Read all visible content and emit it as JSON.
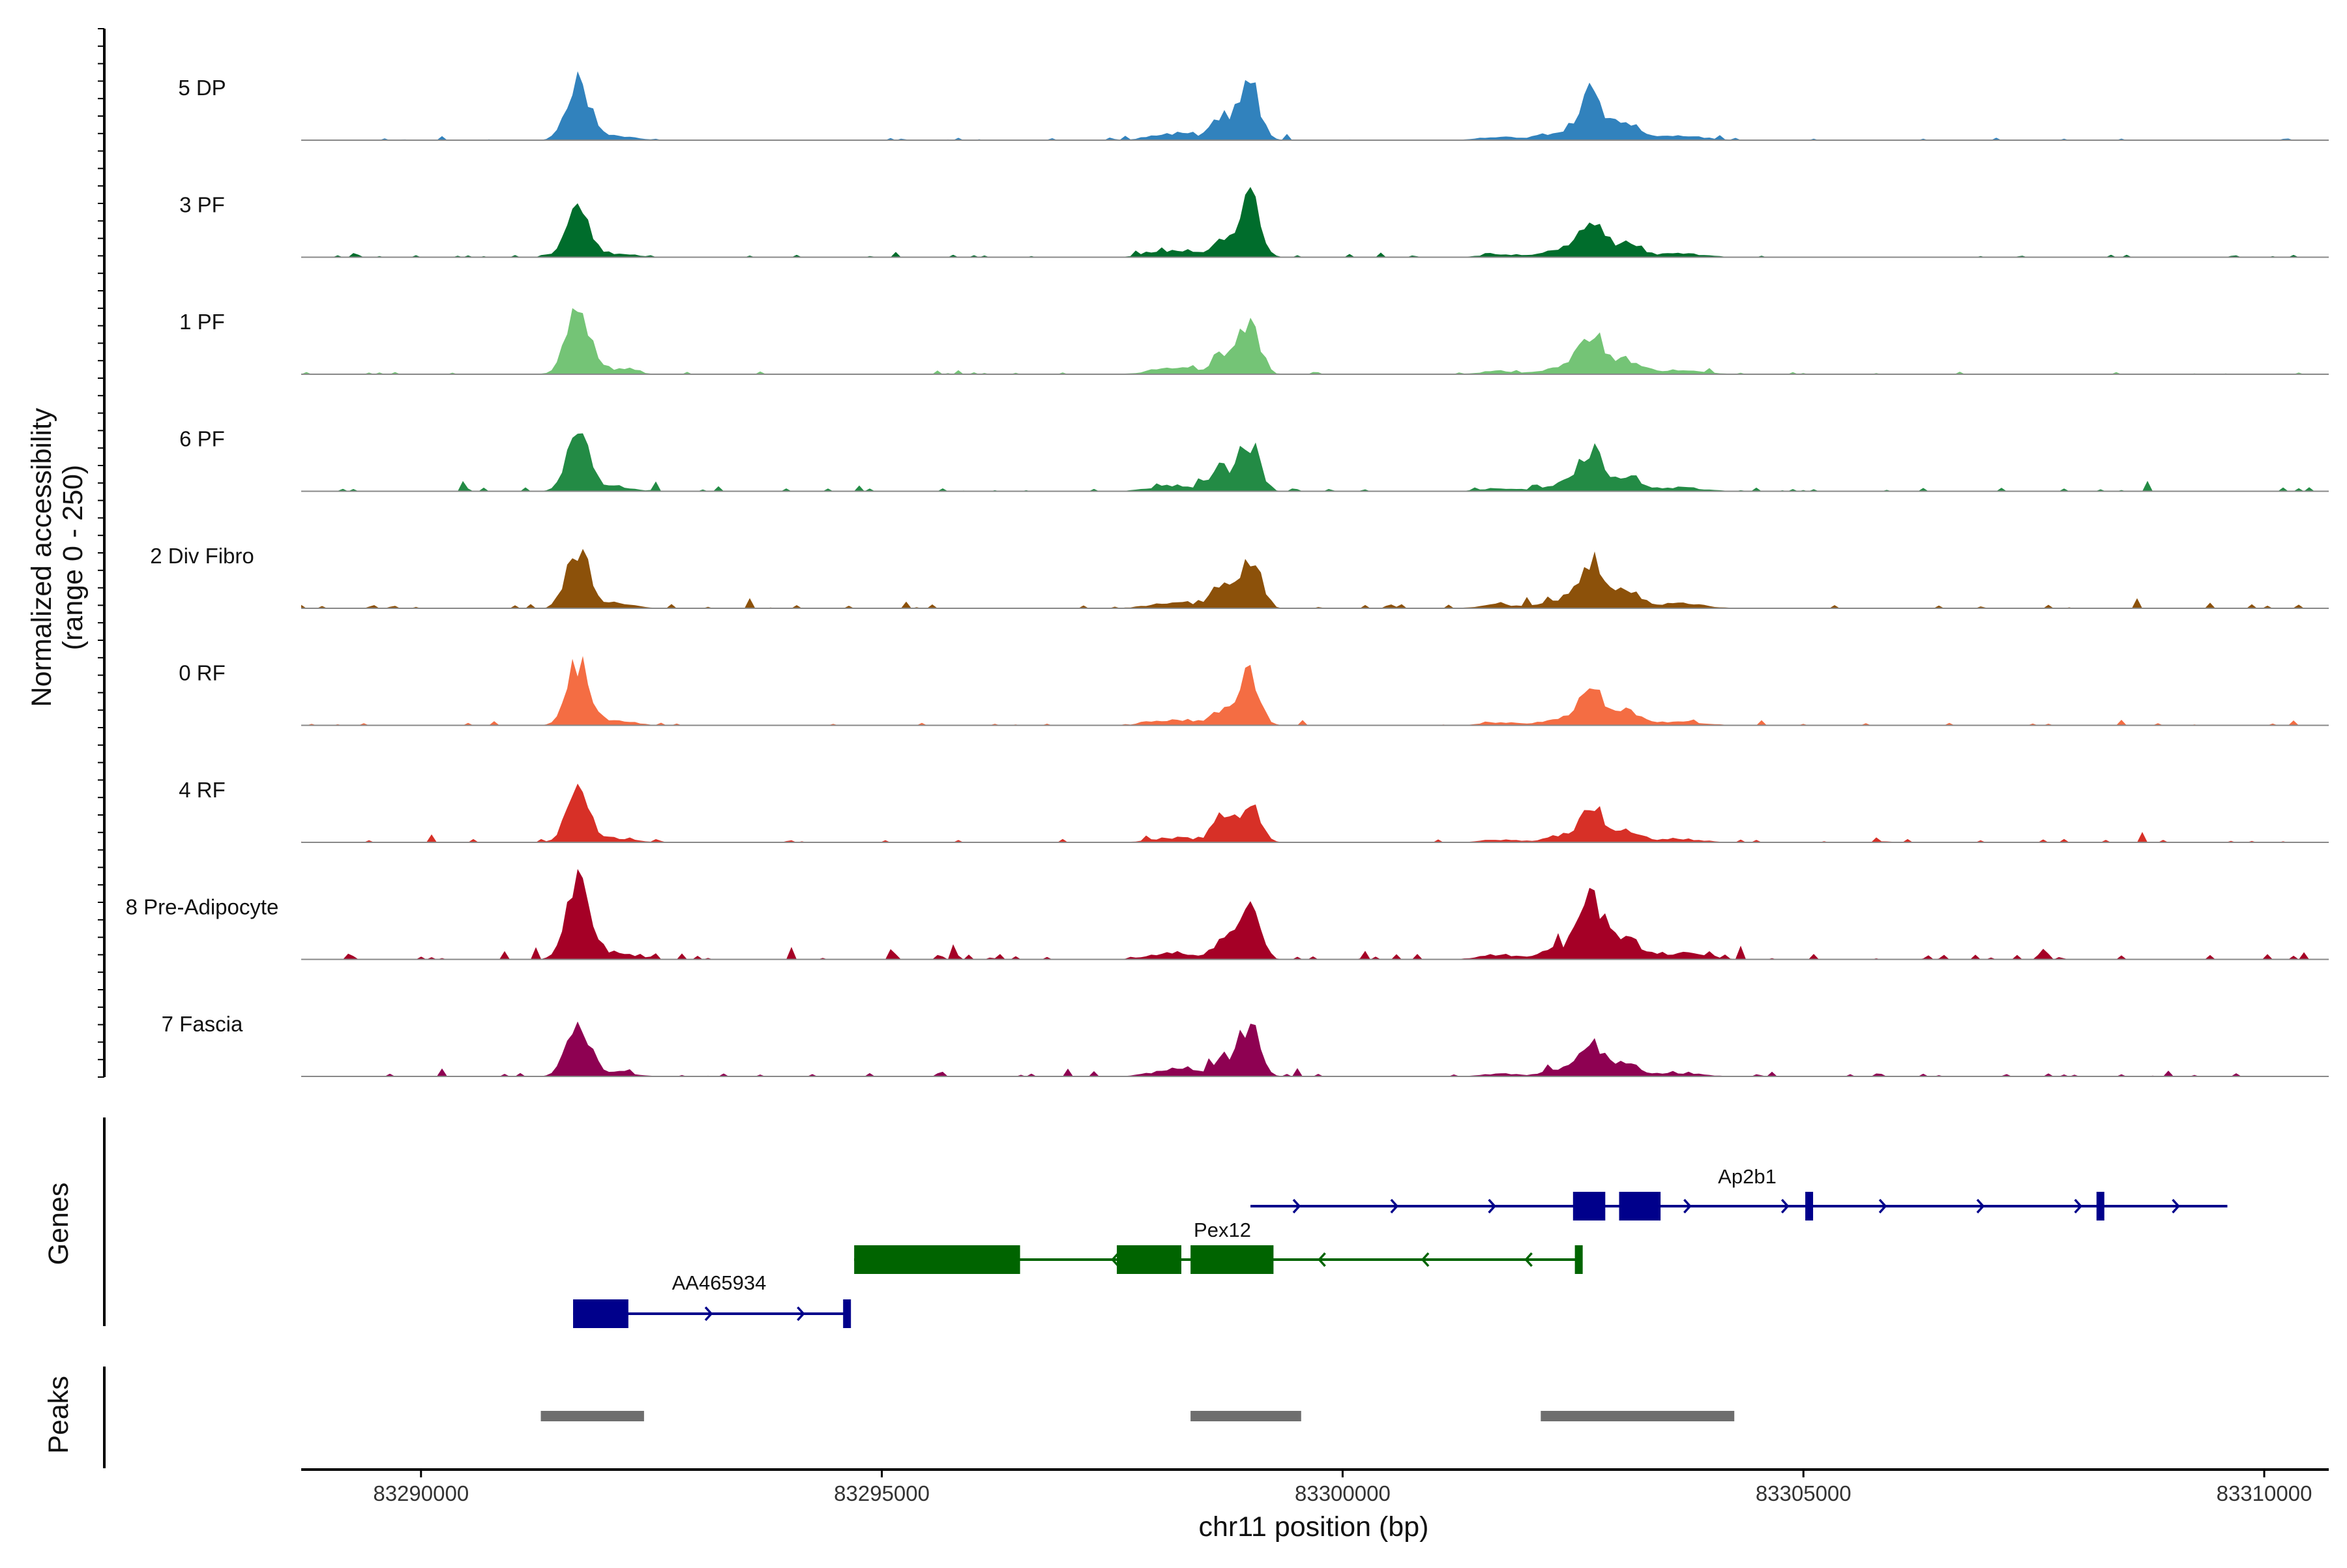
{
  "chart_data": {
    "type": "area",
    "title": "",
    "region": {
      "chrom": "chr11",
      "start": 83288700,
      "end": 83310700
    },
    "xlabel": "chr11 position (bp)",
    "ylabel": [
      "Normalized accessibility",
      "(range 0 - 250)"
    ],
    "ylim": [
      0,
      250
    ],
    "xticks": [
      83290000,
      83295000,
      83300000,
      83305000,
      83310000
    ],
    "xtick_labels": [
      "83290000",
      "83295000",
      "83300000",
      "83305000",
      "83310000"
    ],
    "peak_centers": [
      83291700,
      83298900,
      83302700
    ],
    "series": [
      {
        "name": "5 DP",
        "color": "#3182BD",
        "peak_heights": [
          0.72,
          0.7,
          0.55
        ],
        "secondary_ratio": 0.4,
        "noise": 0.03
      },
      {
        "name": "3 PF",
        "color": "#006D2C",
        "peak_heights": [
          0.57,
          0.73,
          0.46
        ],
        "secondary_ratio": 0.22,
        "noise": 0.03
      },
      {
        "name": "1 PF",
        "color": "#74C476",
        "peak_heights": [
          0.77,
          0.62,
          0.48
        ],
        "secondary_ratio": 0.38,
        "noise": 0.03
      },
      {
        "name": "6 PF",
        "color": "#238B45",
        "peak_heights": [
          0.72,
          0.58,
          0.46
        ],
        "secondary_ratio": 0.48,
        "noise": 0.05
      },
      {
        "name": "2 Div Fibro",
        "color": "#8C510A",
        "peak_heights": [
          0.72,
          0.62,
          0.56
        ],
        "secondary_ratio": 0.45,
        "noise": 0.05
      },
      {
        "name": "0 RF",
        "color": "#F46D43",
        "peak_heights": [
          0.72,
          0.58,
          0.45
        ],
        "secondary_ratio": 0.3,
        "noise": 0.03
      },
      {
        "name": "4 RF",
        "color": "#D73027",
        "peak_heights": [
          0.62,
          0.47,
          0.4
        ],
        "secondary_ratio": 0.62,
        "noise": 0.04
      },
      {
        "name": "8 Pre-Adipocyte",
        "color": "#A50026",
        "peak_heights": [
          0.99,
          0.65,
          0.72
        ],
        "secondary_ratio": 0.3,
        "noise": 0.07
      },
      {
        "name": "7 Fascia",
        "color": "#8E0152",
        "peak_heights": [
          0.65,
          0.62,
          0.4
        ],
        "secondary_ratio": 0.35,
        "noise": 0.04
      }
    ],
    "genes": [
      {
        "name": "Ap2b1",
        "strand": "+",
        "color": "#00008B",
        "start": 83299000,
        "end": 83309600,
        "exons": [
          [
            83302500,
            83302850
          ],
          [
            83303000,
            83303450
          ],
          [
            83305020,
            83305060
          ],
          [
            83308180,
            83308220
          ]
        ]
      },
      {
        "name": "Pex12",
        "strand": "-",
        "color": "#006400",
        "start": 83294700,
        "end": 83302550,
        "exons": [
          [
            83294700,
            83296500
          ],
          [
            83297550,
            83298250
          ],
          [
            83298350,
            83299250
          ],
          [
            83302520,
            83302560
          ]
        ]
      },
      {
        "name": "AA465934",
        "strand": "+",
        "color": "#00008B",
        "start": 83291650,
        "end": 83294650,
        "exons": [
          [
            83291650,
            83292250
          ],
          [
            83294580,
            83294650
          ]
        ]
      }
    ],
    "gene_track_label": "Genes",
    "peaks_track_label": "Peaks",
    "peaks": [
      [
        83291300,
        83292420
      ],
      [
        83298350,
        83299550
      ],
      [
        83302150,
        83304250
      ]
    ]
  }
}
